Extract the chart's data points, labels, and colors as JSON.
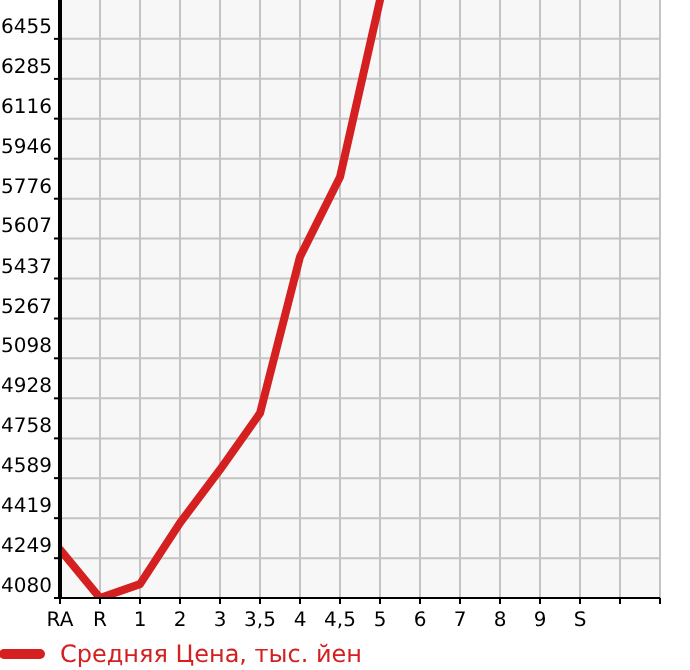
{
  "chart_data": {
    "type": "line",
    "categories": [
      "RA",
      "R",
      "1",
      "2",
      "3",
      "3,5",
      "4",
      "4,5",
      "5",
      "6",
      "7",
      "8",
      "9",
      "S",
      null,
      null
    ],
    "series": [
      {
        "name": "Средняя Цена, тыс. йен",
        "color": "#d42020",
        "values": [
          4286,
          4080,
          4139,
          4399,
          4625,
          4865,
          5529,
          5868,
          6620,
          null,
          null,
          null,
          null,
          null,
          null,
          null
        ]
      }
    ],
    "ylim": [
      4080,
      6620
    ],
    "yticks": [
      4080,
      4249,
      4419,
      4589,
      4758,
      4928,
      5098,
      5267,
      5437,
      5607,
      5776,
      5946,
      6116,
      6285,
      6455
    ],
    "grid": true,
    "legend": "bottom",
    "marker": "none",
    "line_style": "solid"
  }
}
